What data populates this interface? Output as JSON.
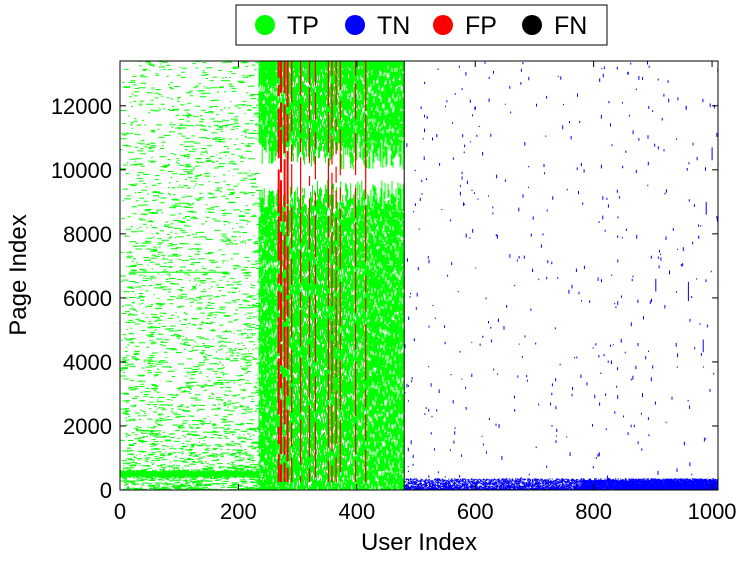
{
  "chart_data": {
    "type": "scatter",
    "title": "",
    "xlabel": "User Index",
    "ylabel": "Page Index",
    "xlim": [
      0,
      1010
    ],
    "ylim": [
      0,
      13400
    ],
    "xticks": [
      0,
      200,
      400,
      600,
      800,
      1000
    ],
    "yticks": [
      0,
      2000,
      4000,
      6000,
      8000,
      10000,
      12000
    ],
    "xtick_labels": [
      "0",
      "200",
      "400",
      "600",
      "800",
      "1000"
    ],
    "ytick_labels": [
      "0",
      "2000",
      "4000",
      "6000",
      "8000",
      "10000",
      "12000"
    ],
    "divider_x": 480,
    "grid": false,
    "legend_position": "top-center, outside plot",
    "legend": [
      {
        "name": "TP",
        "color": "#00ff00"
      },
      {
        "name": "TN",
        "color": "#0000ff"
      },
      {
        "name": "FP",
        "color": "#ff0000"
      },
      {
        "name": "FN",
        "color": "#000000"
      }
    ],
    "regions": [
      {
        "class": "TP",
        "note": "dense block",
        "x": [
          235,
          480
        ],
        "y": [
          0,
          13400
        ]
      },
      {
        "class": "TP",
        "note": "low-page band",
        "x": [
          0,
          235
        ],
        "y": [
          350,
          650
        ]
      },
      {
        "class": "TP",
        "note": "sparse scatter",
        "x": [
          0,
          235
        ],
        "y": [
          0,
          13400
        ]
      },
      {
        "class": "FP",
        "note": "vertical streaks",
        "x_values": [
          268,
          272,
          278,
          283,
          290,
          305,
          320,
          330,
          352,
          358,
          365,
          372,
          398,
          415
        ]
      },
      {
        "class": "TN",
        "note": "dense low-page band",
        "x": [
          480,
          1010
        ],
        "y": [
          0,
          350
        ]
      },
      {
        "class": "TN",
        "note": "sparse scatter",
        "x": [
          480,
          1010
        ],
        "y": [
          0,
          13400
        ]
      }
    ]
  }
}
